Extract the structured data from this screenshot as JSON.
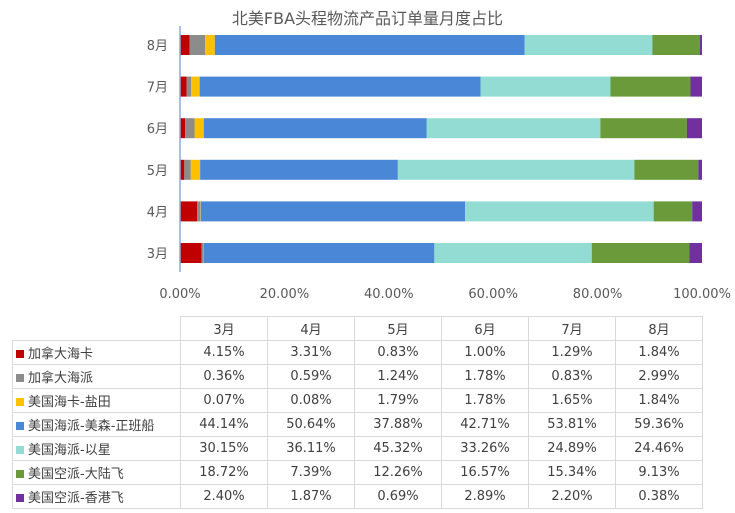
{
  "chart_data": {
    "type": "bar",
    "orientation": "horizontal",
    "stacked": "percent",
    "title": "北美FBA头程物流产品订单量月度占比",
    "categories": [
      "3月",
      "4月",
      "5月",
      "6月",
      "7月",
      "8月"
    ],
    "x_ticks": [
      "0.00%",
      "20.00%",
      "40.00%",
      "60.00%",
      "80.00%",
      "100.00%"
    ],
    "xlim": [
      0,
      100
    ],
    "grid": false,
    "legend": "data-table",
    "series": [
      {
        "name": "加拿大海卡",
        "color": "#c00000",
        "values": [
          4.15,
          3.31,
          0.83,
          1.0,
          1.29,
          1.84
        ],
        "labels": [
          "4.15%",
          "3.31%",
          "0.83%",
          "1.00%",
          "1.29%",
          "1.84%"
        ]
      },
      {
        "name": "加拿大海派",
        "color": "#8c8c8c",
        "values": [
          0.36,
          0.59,
          1.24,
          1.78,
          0.83,
          2.99
        ],
        "labels": [
          "0.36%",
          "0.59%",
          "1.24%",
          "1.78%",
          "0.83%",
          "2.99%"
        ]
      },
      {
        "name": "美国海卡-盐田",
        "color": "#ffc000",
        "values": [
          0.07,
          0.08,
          1.79,
          1.78,
          1.65,
          1.84
        ],
        "labels": [
          "0.07%",
          "0.08%",
          "1.79%",
          "1.78%",
          "1.65%",
          "1.84%"
        ]
      },
      {
        "name": "美国海派-美森-正班船",
        "color": "#4a87d7",
        "values": [
          44.14,
          50.64,
          37.88,
          42.71,
          53.81,
          59.36
        ],
        "labels": [
          "44.14%",
          "50.64%",
          "37.88%",
          "42.71%",
          "53.81%",
          "59.36%"
        ]
      },
      {
        "name": "美国海派-以星",
        "color": "#92dcd4",
        "values": [
          30.15,
          36.11,
          45.32,
          33.26,
          24.89,
          24.46
        ],
        "labels": [
          "30.15%",
          "36.11%",
          "45.32%",
          "33.26%",
          "24.89%",
          "24.46%"
        ]
      },
      {
        "name": "美国空派-大陆飞",
        "color": "#6a9a3a",
        "values": [
          18.72,
          7.39,
          12.26,
          16.57,
          15.34,
          9.13
        ],
        "labels": [
          "18.72%",
          "7.39%",
          "12.26%",
          "16.57%",
          "15.34%",
          "9.13%"
        ]
      },
      {
        "name": "美国空派-香港飞",
        "color": "#7030a0",
        "values": [
          2.4,
          1.87,
          0.69,
          2.89,
          2.2,
          0.38
        ],
        "labels": [
          "2.40%",
          "1.87%",
          "0.69%",
          "2.89%",
          "2.20%",
          "0.38%"
        ]
      }
    ]
  }
}
